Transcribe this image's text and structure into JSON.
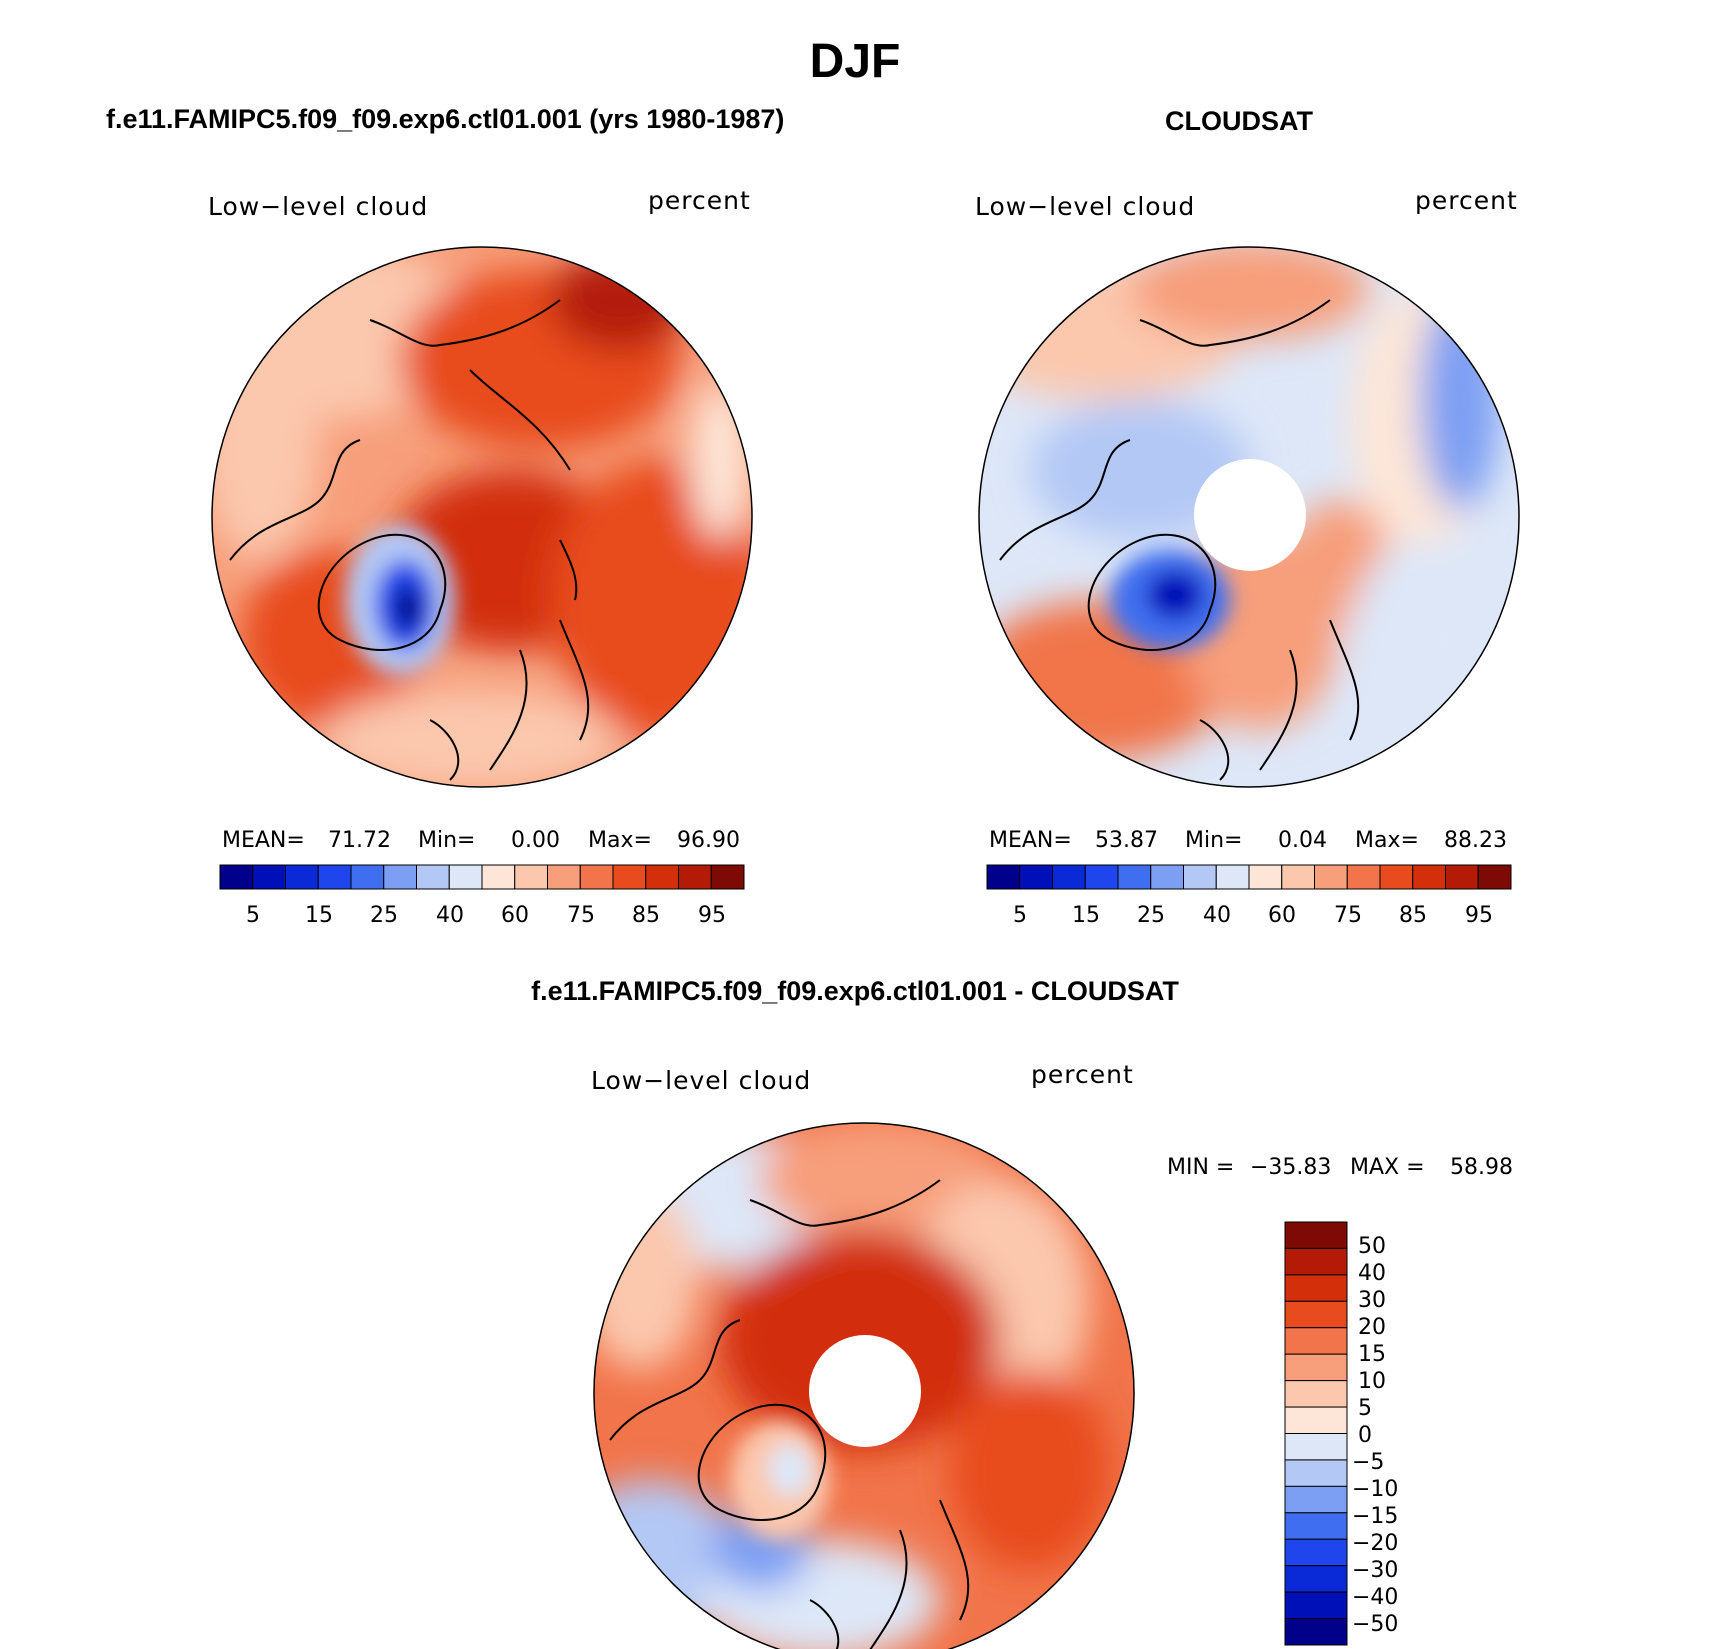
{
  "season": "DJF",
  "colors": {
    "seq": [
      "#00008a",
      "#0010b8",
      "#0a2ad8",
      "#1e46ec",
      "#3f6ff0",
      "#7d9ff3",
      "#b3c8f5",
      "#dde7f8",
      "#fde6d8",
      "#fbc7ad",
      "#f79e7a",
      "#f1744a",
      "#e84b1e",
      "#d22f0a",
      "#b31b07",
      "#7d0a05"
    ],
    "diff": [
      "#7d0a05",
      "#b31b07",
      "#d22f0a",
      "#e84b1e",
      "#f1744a",
      "#f79e7a",
      "#fbc7ad",
      "#fde6d8",
      "#dde7f8",
      "#b3c8f5",
      "#7d9ff3",
      "#3f6ff0",
      "#1e46ec",
      "#0a2ad8",
      "#0010b8",
      "#00008a"
    ]
  },
  "panels": [
    {
      "title": "f.e11.FAMIPC5.f09_f09.exp6.ctl01.001 (yrs 1980-1987)",
      "variable_label": "Low−level cloud",
      "units_label": "percent",
      "stats": {
        "mean_label": "MEAN=",
        "mean": "71.72",
        "min_label": "Min=",
        "min": "0.00",
        "max_label": "Max=",
        "max": "96.90"
      },
      "colorbar_ticks": [
        "5",
        "15",
        "25",
        "40",
        "60",
        "75",
        "85",
        "95"
      ]
    },
    {
      "title": "CLOUDSAT",
      "variable_label": "Low−level cloud",
      "units_label": "percent",
      "stats": {
        "mean_label": "MEAN=",
        "mean": "53.87",
        "min_label": "Min=",
        "min": "0.04",
        "max_label": "Max=",
        "max": "88.23"
      },
      "colorbar_ticks": [
        "5",
        "15",
        "25",
        "40",
        "60",
        "75",
        "85",
        "95"
      ]
    },
    {
      "title": "f.e11.FAMIPC5.f09_f09.exp6.ctl01.001 - CLOUDSAT",
      "variable_label": "Low−level cloud",
      "units_label": "percent",
      "stats": {
        "min_label": "MIN =",
        "min": "−35.83",
        "max_label": "MAX =",
        "max": "58.98"
      },
      "colorbar_ticks": [
        "50",
        "40",
        "30",
        "20",
        "15",
        "10",
        "5",
        "0",
        "−5",
        "−10",
        "−15",
        "−20",
        "−30",
        "−40",
        "−50"
      ]
    }
  ]
}
